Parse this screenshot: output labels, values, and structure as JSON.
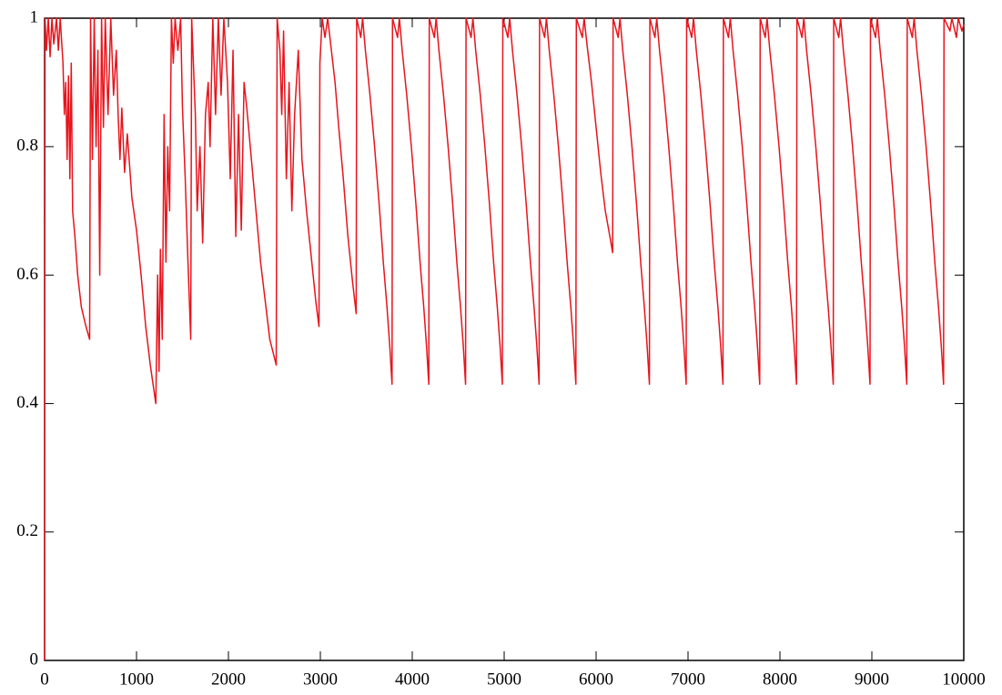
{
  "chart_data": {
    "type": "line",
    "color": "#e8141c",
    "xlim": [
      0,
      10000
    ],
    "ylim": [
      0,
      1
    ],
    "xticks": [
      0,
      1000,
      2000,
      3000,
      4000,
      5000,
      6000,
      7000,
      8000,
      9000,
      10000
    ],
    "yticks": [
      0,
      0.2,
      0.4,
      0.6,
      0.8,
      1
    ],
    "x": [
      0,
      5,
      20,
      40,
      60,
      80,
      100,
      130,
      150,
      170,
      200,
      215,
      230,
      245,
      260,
      275,
      290,
      305,
      330,
      360,
      400,
      450,
      490,
      500,
      520,
      540,
      560,
      580,
      600,
      620,
      640,
      660,
      690,
      720,
      750,
      780,
      800,
      820,
      840,
      870,
      900,
      950,
      1000,
      1050,
      1100,
      1150,
      1210,
      1230,
      1245,
      1260,
      1280,
      1300,
      1320,
      1340,
      1360,
      1380,
      1400,
      1420,
      1450,
      1480,
      1500,
      1530,
      1560,
      1590,
      1600,
      1640,
      1660,
      1690,
      1720,
      1750,
      1780,
      1800,
      1830,
      1860,
      1890,
      1920,
      1950,
      1990,
      2020,
      2050,
      2080,
      2110,
      2140,
      2170,
      2200,
      2250,
      2300,
      2350,
      2400,
      2450,
      2520,
      2530,
      2560,
      2580,
      2600,
      2630,
      2660,
      2690,
      2720,
      2760,
      2800,
      2850,
      2900,
      2950,
      2985,
      2995,
      3020,
      3050,
      3080,
      3120,
      3160,
      3200,
      3250,
      3300,
      3350,
      3390,
      3395,
      3440,
      3460,
      3490,
      3540,
      3590,
      3640,
      3685,
      3725,
      3755,
      3780,
      3785,
      3840,
      3860,
      3890,
      3940,
      3990,
      4040,
      4085,
      4125,
      4155,
      4180,
      4185,
      4240,
      4260,
      4290,
      4340,
      4390,
      4440,
      4485,
      4525,
      4555,
      4580,
      4585,
      4640,
      4660,
      4690,
      4740,
      4790,
      4840,
      4885,
      4925,
      4955,
      4980,
      4985,
      5040,
      5060,
      5090,
      5140,
      5190,
      5240,
      5285,
      5325,
      5355,
      5380,
      5385,
      5440,
      5460,
      5490,
      5540,
      5590,
      5640,
      5685,
      5725,
      5755,
      5780,
      5785,
      5850,
      5870,
      5900,
      5950,
      6000,
      6050,
      6100,
      6150,
      6180,
      6185,
      6240,
      6260,
      6290,
      6340,
      6390,
      6440,
      6485,
      6525,
      6555,
      6580,
      6585,
      6640,
      6660,
      6690,
      6740,
      6790,
      6840,
      6885,
      6925,
      6955,
      6980,
      6985,
      7040,
      7060,
      7090,
      7140,
      7190,
      7240,
      7285,
      7325,
      7355,
      7380,
      7385,
      7440,
      7460,
      7490,
      7540,
      7590,
      7640,
      7685,
      7725,
      7755,
      7780,
      7785,
      7840,
      7860,
      7890,
      7940,
      7990,
      8040,
      8085,
      8125,
      8155,
      8180,
      8185,
      8240,
      8260,
      8290,
      8340,
      8390,
      8440,
      8485,
      8525,
      8555,
      8580,
      8585,
      8640,
      8660,
      8690,
      8740,
      8790,
      8840,
      8885,
      8925,
      8955,
      8980,
      8985,
      9040,
      9060,
      9090,
      9140,
      9190,
      9240,
      9285,
      9325,
      9355,
      9380,
      9385,
      9440,
      9460,
      9490,
      9540,
      9590,
      9640,
      9685,
      9725,
      9755,
      9780,
      9785,
      9850,
      9870,
      9920,
      9940,
      9980,
      10000
    ],
    "values": [
      0,
      1,
      0.95,
      1,
      0.94,
      1,
      0.96,
      1,
      0.95,
      1,
      0.93,
      0.85,
      0.9,
      0.78,
      0.91,
      0.75,
      0.93,
      0.7,
      0.66,
      0.6,
      0.55,
      0.52,
      0.5,
      1,
      0.78,
      1,
      0.8,
      0.95,
      0.6,
      1,
      0.83,
      1,
      0.85,
      1,
      0.88,
      0.95,
      0.85,
      0.78,
      0.86,
      0.76,
      0.82,
      0.72,
      0.67,
      0.6,
      0.52,
      0.46,
      0.4,
      0.6,
      0.45,
      0.64,
      0.5,
      0.85,
      0.62,
      0.8,
      0.7,
      1,
      0.93,
      1,
      0.95,
      1,
      0.86,
      0.75,
      0.62,
      0.5,
      1,
      0.85,
      0.7,
      0.8,
      0.65,
      0.85,
      0.9,
      0.8,
      1,
      0.85,
      1,
      0.88,
      1,
      0.9,
      0.75,
      0.95,
      0.66,
      0.85,
      0.67,
      0.9,
      0.86,
      0.78,
      0.7,
      0.62,
      0.56,
      0.5,
      0.46,
      1,
      0.95,
      0.85,
      0.98,
      0.75,
      0.9,
      0.7,
      0.85,
      0.95,
      0.78,
      0.7,
      0.63,
      0.56,
      0.52,
      0.93,
      1,
      0.97,
      1,
      0.95,
      0.9,
      0.83,
      0.75,
      0.66,
      0.59,
      0.54,
      1,
      0.97,
      1,
      0.95,
      0.88,
      0.8,
      0.71,
      0.62,
      0.55,
      0.49,
      0.43,
      1,
      0.97,
      1,
      0.95,
      0.88,
      0.8,
      0.71,
      0.62,
      0.55,
      0.49,
      0.43,
      1,
      0.97,
      1,
      0.95,
      0.88,
      0.8,
      0.71,
      0.62,
      0.55,
      0.49,
      0.43,
      1,
      0.97,
      1,
      0.95,
      0.88,
      0.8,
      0.71,
      0.62,
      0.55,
      0.49,
      0.43,
      1,
      0.97,
      1,
      0.95,
      0.88,
      0.8,
      0.71,
      0.62,
      0.55,
      0.49,
      0.43,
      1,
      0.97,
      1,
      0.95,
      0.88,
      0.8,
      0.71,
      0.62,
      0.55,
      0.49,
      0.43,
      1,
      0.97,
      1,
      0.96,
      0.9,
      0.83,
      0.76,
      0.7,
      0.66,
      0.635,
      1,
      0.97,
      1,
      0.95,
      0.88,
      0.8,
      0.71,
      0.62,
      0.55,
      0.49,
      0.43,
      1,
      0.97,
      1,
      0.95,
      0.88,
      0.8,
      0.71,
      0.62,
      0.55,
      0.49,
      0.43,
      1,
      0.97,
      1,
      0.95,
      0.88,
      0.8,
      0.71,
      0.62,
      0.55,
      0.49,
      0.43,
      1,
      0.97,
      1,
      0.95,
      0.88,
      0.8,
      0.71,
      0.62,
      0.55,
      0.49,
      0.43,
      1,
      0.97,
      1,
      0.95,
      0.88,
      0.8,
      0.71,
      0.62,
      0.55,
      0.49,
      0.43,
      1,
      0.97,
      1,
      0.95,
      0.88,
      0.8,
      0.71,
      0.62,
      0.55,
      0.49,
      0.43,
      1,
      0.97,
      1,
      0.95,
      0.88,
      0.8,
      0.71,
      0.62,
      0.55,
      0.49,
      0.43,
      1,
      0.97,
      1,
      0.95,
      0.88,
      0.8,
      0.71,
      0.62,
      0.55,
      0.49,
      0.43,
      1,
      0.97,
      1,
      0.95,
      0.88,
      0.8,
      0.71,
      0.62,
      0.55,
      0.49,
      0.43,
      1,
      0.98,
      1,
      0.97,
      1,
      0.98,
      0.99
    ]
  }
}
